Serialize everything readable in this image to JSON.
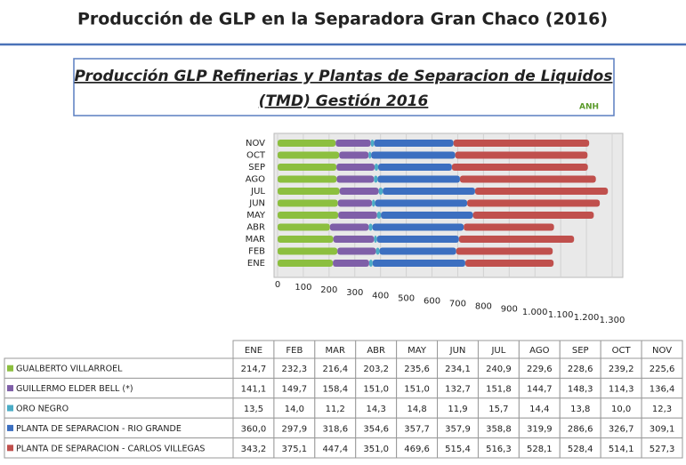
{
  "header_title": "Producción de GLP en la Separadora Gran Chaco (2016)",
  "chart_data": {
    "type": "bar",
    "orientation": "horizontal",
    "stacked": true,
    "title": "Producción GLP Refinerias y Plantas de Separacion de Liquidos",
    "subtitle": "(TMD) Gestión 2016",
    "logo_text": "ANH",
    "categories": [
      "ENE",
      "FEB",
      "MAR",
      "ABR",
      "MAY",
      "JUN",
      "JUL",
      "AGO",
      "SEP",
      "OCT",
      "NOV"
    ],
    "xlim": [
      0,
      1300
    ],
    "xticks": [
      0,
      100,
      200,
      300,
      400,
      500,
      600,
      700,
      800,
      900,
      {
        "value": 1000,
        "label": "1.000"
      },
      {
        "value": 1100,
        "label": "1.100"
      },
      {
        "value": 1200,
        "label": "1.200"
      },
      {
        "value": 1300,
        "label": "1.300"
      }
    ],
    "series": [
      {
        "name": "GUALBERTO VILLARROEL",
        "color": "#8cbf3f",
        "values": [
          214.7,
          232.3,
          216.4,
          203.2,
          235.6,
          234.1,
          240.9,
          229.6,
          228.6,
          239.2,
          225.6
        ],
        "value_labels": [
          "214,7",
          "232,3",
          "216,4",
          "203,2",
          "235,6",
          "234,1",
          "240,9",
          "229,6",
          "228,6",
          "239,2",
          "225,6"
        ]
      },
      {
        "name": "GUILLERMO ELDER BELL (*)",
        "color": "#7f5fa8",
        "values": [
          141.1,
          149.7,
          158.4,
          151.0,
          151.0,
          132.7,
          151.8,
          144.7,
          148.3,
          114.3,
          136.4
        ],
        "value_labels": [
          "141,1",
          "149,7",
          "158,4",
          "151,0",
          "151,0",
          "132,7",
          "151,8",
          "144,7",
          "148,3",
          "114,3",
          "136,4"
        ]
      },
      {
        "name": "ORO NEGRO",
        "color": "#4bacc6",
        "values": [
          13.5,
          14.0,
          11.2,
          14.3,
          14.8,
          11.9,
          15.7,
          14.4,
          13.8,
          10.0,
          12.3
        ],
        "value_labels": [
          "13,5",
          "14,0",
          "11,2",
          "14,3",
          "14,8",
          "11,9",
          "15,7",
          "14,4",
          "13,8",
          "10,0",
          "12,3"
        ]
      },
      {
        "name": "PLANTA DE SEPARACION - RIO GRANDE",
        "color": "#3c6fc0",
        "values": [
          360.0,
          297.9,
          318.6,
          354.6,
          357.7,
          357.9,
          358.8,
          319.9,
          286.6,
          326.7,
          309.1
        ],
        "value_labels": [
          "360,0",
          "297,9",
          "318,6",
          "354,6",
          "357,7",
          "357,9",
          "358,8",
          "319,9",
          "286,6",
          "326,7",
          "309,1"
        ]
      },
      {
        "name": "PLANTA DE SEPARACION - CARLOS VILLEGAS",
        "color": "#c0504d",
        "values": [
          343.2,
          375.1,
          447.4,
          351.0,
          469.6,
          515.4,
          516.3,
          528.1,
          528.4,
          514.1,
          527.3
        ],
        "value_labels": [
          "343,2",
          "375,1",
          "447,4",
          "351,0",
          "469,6",
          "515,4",
          "516,3",
          "528,1",
          "528,4",
          "514,1",
          "527,3"
        ]
      }
    ]
  }
}
